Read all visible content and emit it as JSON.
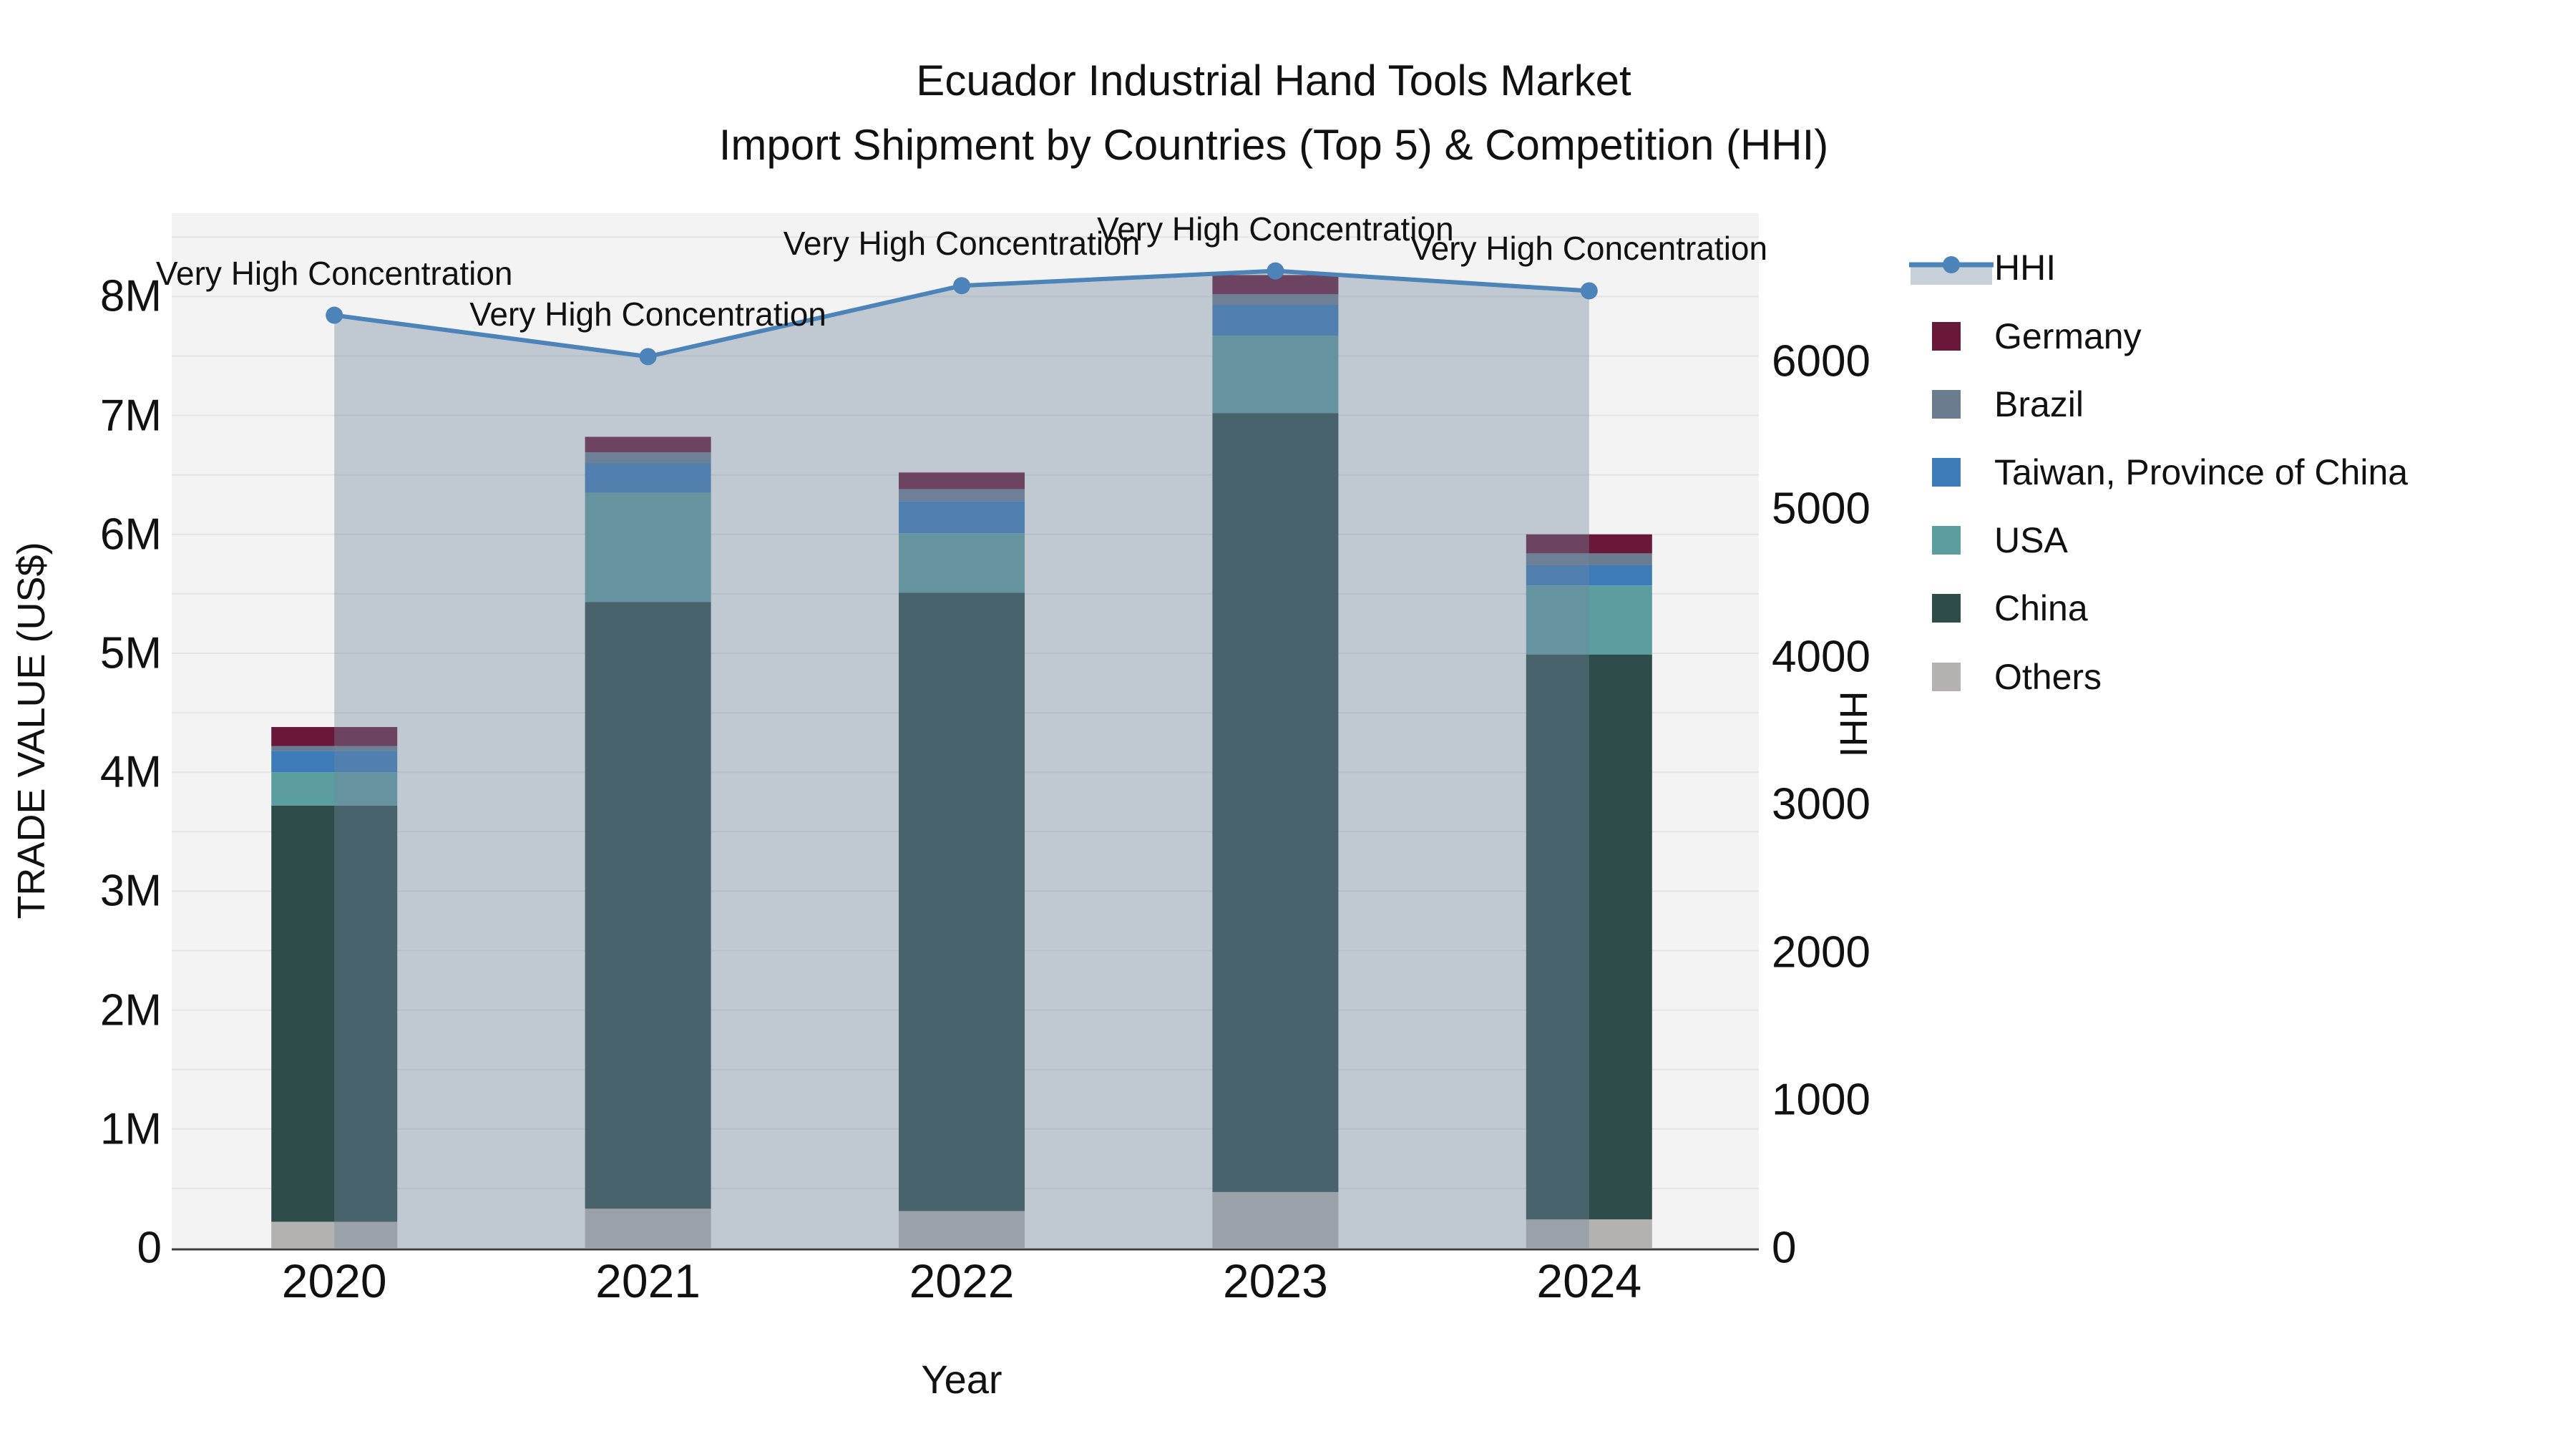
{
  "title": {
    "line1": "Ecuador Industrial Hand Tools Market",
    "line2": "Import Shipment by Countries (Top 5) & Competition (HHI)"
  },
  "x_axis": {
    "title": "Year",
    "tick_labels": [
      "2020",
      "2021",
      "2022",
      "2023",
      "2024"
    ]
  },
  "y_left_axis": {
    "title": "TRADE VALUE (US$)",
    "tick_labels": [
      "0",
      "1M",
      "2M",
      "3M",
      "4M",
      "5M",
      "6M",
      "7M",
      "8M"
    ]
  },
  "y_right_axis": {
    "title": "HHI",
    "tick_labels": [
      "0",
      "1000",
      "2000",
      "3000",
      "4000",
      "5000",
      "6000"
    ]
  },
  "legend": {
    "items": [
      {
        "id": "hhi",
        "label": "HHI",
        "kind": "line"
      },
      {
        "id": "germany",
        "label": "Germany",
        "kind": "swatch",
        "color": "#681838"
      },
      {
        "id": "brazil",
        "label": "Brazil",
        "kind": "swatch",
        "color": "#6b7c8f"
      },
      {
        "id": "taiwan",
        "label": "Taiwan, Province of China",
        "kind": "swatch",
        "color": "#3d7cb8"
      },
      {
        "id": "usa",
        "label": "USA",
        "kind": "swatch",
        "color": "#5c9da0"
      },
      {
        "id": "china",
        "label": "China",
        "kind": "swatch",
        "color": "#2e4c4a"
      },
      {
        "id": "others",
        "label": "Others",
        "kind": "swatch",
        "color": "#b4b2b0"
      }
    ]
  },
  "colors": {
    "plot_background": "#f3f3f3",
    "gridline": "#e4e4e4",
    "axis_line": "#3b3b3b",
    "text": "#111111",
    "hhi_line": "#4c83b8",
    "hhi_area_fill": "rgba(115,135,160,0.40)",
    "hhi_legend_band": "#c8d0da"
  },
  "chart_data": {
    "type": "bar",
    "subtype": "stacked bars + line overlay on secondary axis with area fill",
    "title": "Ecuador Industrial Hand Tools Market",
    "subtitle": "Import Shipment by Countries (Top 5) & Competition (HHI)",
    "xlabel": "Year",
    "categories": [
      "2020",
      "2021",
      "2022",
      "2023",
      "2024"
    ],
    "stack_order_bottom_to_top": [
      "Others",
      "China",
      "USA",
      "Taiwan, Province of China",
      "Brazil",
      "Germany"
    ],
    "series": [
      {
        "name": "Others",
        "color": "#b4b2b0",
        "values": [
          220000,
          330000,
          310000,
          470000,
          240000
        ]
      },
      {
        "name": "China",
        "color": "#2e4c4a",
        "values": [
          3500000,
          5100000,
          5200000,
          6550000,
          4750000
        ]
      },
      {
        "name": "USA",
        "color": "#5c9da0",
        "values": [
          280000,
          920000,
          500000,
          650000,
          580000
        ]
      },
      {
        "name": "Taiwan, Province of China",
        "color": "#3d7cb8",
        "values": [
          180000,
          250000,
          270000,
          260000,
          170000
        ]
      },
      {
        "name": "Brazil",
        "color": "#6b7c8f",
        "values": [
          40000,
          90000,
          100000,
          90000,
          100000
        ]
      },
      {
        "name": "Germany",
        "color": "#681838",
        "values": [
          160000,
          130000,
          140000,
          160000,
          160000
        ]
      }
    ],
    "bar_totals": [
      4380000,
      6820000,
      6520000,
      8180000,
      6000000
    ],
    "line_series": {
      "name": "HHI",
      "color": "#4c83b8",
      "values": [
        6310,
        6030,
        6510,
        6610,
        6475
      ],
      "annotation_per_point": "Very High Concentration"
    },
    "y_left": {
      "label": "TRADE VALUE (US$)",
      "range": [
        0,
        8700000
      ],
      "tick_values": [
        0,
        1000000,
        2000000,
        3000000,
        4000000,
        5000000,
        6000000,
        7000000,
        8000000
      ]
    },
    "y_right": {
      "label": "HHI",
      "range": [
        0,
        7000
      ],
      "tick_values": [
        0,
        1000,
        2000,
        3000,
        4000,
        5000,
        6000
      ]
    },
    "grid": "horizontal gridlines every 500000 on left axis",
    "legend_position": "right"
  }
}
